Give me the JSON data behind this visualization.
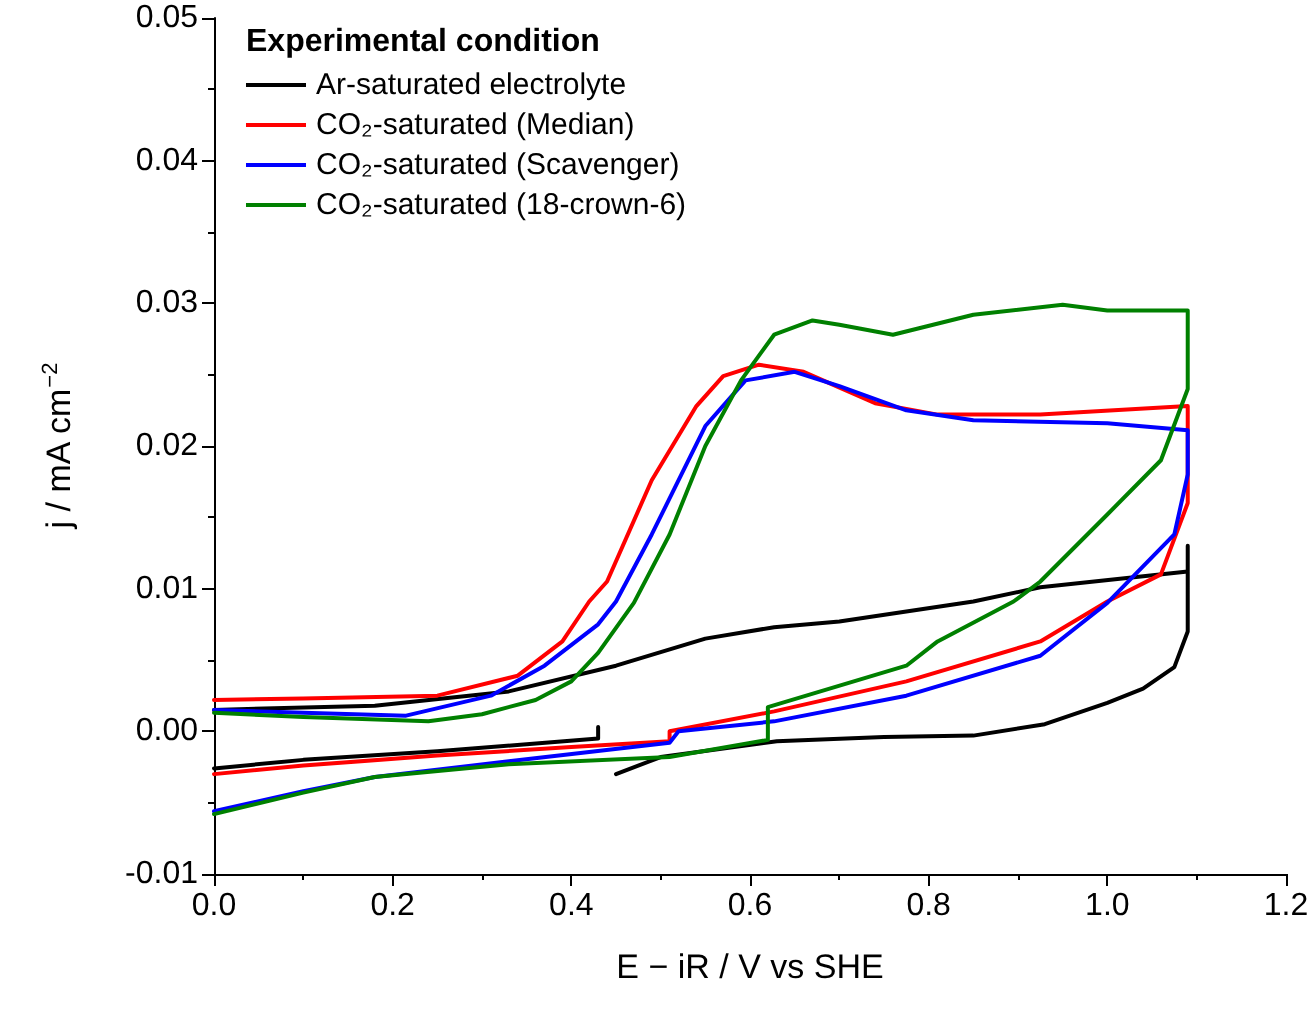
{
  "chart_data": {
    "type": "line",
    "xlabel": "E − iR / V vs SHE",
    "ylabel": "j / mA cm$^{−2}$",
    "legend_title": "Experimental condition",
    "legend": "top left",
    "grid": false,
    "marker": "none",
    "line_style": "solid",
    "xlim": [
      0,
      1.2
    ],
    "ylim": [
      -0.01,
      0.05
    ],
    "xticks": [
      {
        "value": 0,
        "label": "0.0"
      },
      {
        "value": 0.2,
        "label": "0.2"
      },
      {
        "value": 0.4,
        "label": "0.4"
      },
      {
        "value": 0.6,
        "label": "0.6"
      },
      {
        "value": 0.8,
        "label": "0.8"
      },
      {
        "value": 1,
        "label": "1.0"
      },
      {
        "value": 1.2,
        "label": "1.2"
      }
    ],
    "yticks": [
      {
        "value": -0.01,
        "label": "-0.01"
      },
      {
        "value": 0,
        "label": "0.00"
      },
      0.01,
      0.02,
      0.03,
      0.04,
      0.05
    ],
    "series": [
      {
        "name": "Ar-saturated electrolyte",
        "color": "#000000",
        "x": [
          0.45,
          0.5,
          0.63,
          0.75,
          0.85,
          0.93,
          1.0,
          1.04,
          1.075,
          1.09,
          1.09,
          1.09,
          0.925,
          0.85,
          0.7,
          0.627,
          0.55,
          0.45,
          0.33,
          0.18,
          0.0,
          null,
          0.0,
          0.1,
          0.25,
          0.35,
          0.43,
          0.43
        ],
        "values": [
          -0.003,
          -0.0018,
          -0.0007,
          -0.0004,
          -0.0003,
          0.0005,
          0.002,
          0.003,
          0.0045,
          0.007,
          0.013,
          0.0112,
          0.0101,
          0.0091,
          0.0077,
          0.0073,
          0.0065,
          0.0046,
          0.0028,
          0.0018,
          0.0015,
          null,
          -0.0026,
          -0.002,
          -0.0014,
          -0.0009,
          -0.0005,
          0.0003
        ]
      },
      {
        "name": "CO₂-saturated (Median)",
        "color": "#ff0000",
        "x": [
          0.0,
          0.1,
          0.25,
          0.4,
          0.51,
          0.51,
          0.627,
          0.775,
          0.925,
          1.0,
          1.06,
          1.09,
          1.09,
          0.925,
          0.81,
          0.74,
          0.66,
          0.61,
          0.57,
          0.54,
          0.49,
          0.44,
          0.42,
          0.39,
          0.34,
          0.25,
          0.1,
          0.0
        ],
        "values": [
          -0.003,
          -0.0024,
          -0.0017,
          -0.0011,
          -0.0007,
          0.0,
          0.0014,
          0.0035,
          0.0063,
          0.0091,
          0.011,
          0.016,
          0.0228,
          0.0222,
          0.0222,
          0.023,
          0.0252,
          0.0257,
          0.0249,
          0.0228,
          0.0176,
          0.0105,
          0.0091,
          0.0063,
          0.0039,
          0.0025,
          0.0023,
          0.0022
        ]
      },
      {
        "name": "CO₂-saturated (Scavenger)",
        "color": "#0000ff",
        "x": [
          0.0,
          0.1,
          0.18,
          0.33,
          0.51,
          0.52,
          0.627,
          0.775,
          0.925,
          1.0,
          1.075,
          1.09,
          1.09,
          1.0,
          0.85,
          0.775,
          0.7,
          0.65,
          0.595,
          0.55,
          0.49,
          0.45,
          0.43,
          0.37,
          0.31,
          0.215,
          0.1,
          0.0
        ],
        "values": [
          -0.0056,
          -0.0042,
          -0.0032,
          -0.0021,
          -0.0008,
          0.0,
          0.0007,
          0.0025,
          0.0053,
          0.009,
          0.0138,
          0.018,
          0.0211,
          0.0216,
          0.0218,
          0.0225,
          0.0242,
          0.0252,
          0.0246,
          0.0214,
          0.0138,
          0.0091,
          0.0075,
          0.0046,
          0.0025,
          0.0011,
          0.0013,
          0.0015
        ]
      },
      {
        "name": "CO₂-saturated (18-crown-6)",
        "color": "#008000",
        "x": [
          0.0,
          0.1,
          0.18,
          0.33,
          0.51,
          0.62,
          0.62,
          0.775,
          0.81,
          0.895,
          0.925,
          1.0,
          1.06,
          1.09,
          1.09,
          1.0,
          0.95,
          0.85,
          0.76,
          0.7,
          0.67,
          0.627,
          0.59,
          0.55,
          0.51,
          0.47,
          0.43,
          0.4,
          0.36,
          0.3,
          0.24,
          0.1,
          0.0
        ],
        "values": [
          -0.0058,
          -0.0043,
          -0.0032,
          -0.0023,
          -0.0018,
          -0.0006,
          0.0017,
          0.0046,
          0.0063,
          0.0091,
          0.0105,
          0.0152,
          0.019,
          0.024,
          0.0295,
          0.0295,
          0.0299,
          0.0292,
          0.0278,
          0.0285,
          0.0288,
          0.0278,
          0.0246,
          0.02,
          0.0138,
          0.009,
          0.0055,
          0.0035,
          0.0022,
          0.0012,
          0.0007,
          0.001,
          0.0013
        ]
      }
    ]
  }
}
